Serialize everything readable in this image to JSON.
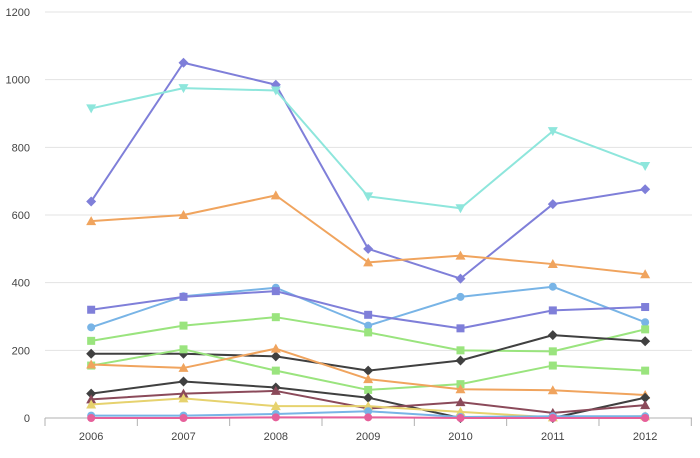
{
  "chart_data": {
    "type": "line",
    "title": "",
    "xlabel": "",
    "ylabel": "",
    "categories": [
      "2006",
      "2007",
      "2008",
      "2009",
      "2010",
      "2011",
      "2012"
    ],
    "ylim": [
      0,
      1200
    ],
    "yticks": [
      0,
      200,
      400,
      600,
      800,
      1000,
      1200
    ],
    "grid": "horizontal",
    "legend": "none",
    "series": [
      {
        "color": "#7f7fd9",
        "marker": "diamond",
        "values": [
          640,
          1050,
          985,
          500,
          412,
          632,
          676
        ]
      },
      {
        "color": "#8ee6dc",
        "marker": "triangle-down",
        "values": [
          915,
          975,
          968,
          655,
          620,
          848,
          745
        ]
      },
      {
        "color": "#f0a45e",
        "marker": "triangle",
        "values": [
          582,
          600,
          658,
          460,
          480,
          455,
          425
        ]
      },
      {
        "color": "#78b4e6",
        "marker": "circle",
        "values": [
          268,
          360,
          385,
          273,
          358,
          388,
          283
        ]
      },
      {
        "color": "#7f7fd9",
        "marker": "square",
        "values": [
          320,
          358,
          375,
          305,
          265,
          318,
          328
        ]
      },
      {
        "color": "#9ae47e",
        "marker": "square",
        "values": [
          228,
          273,
          298,
          253,
          200,
          197,
          262
        ]
      },
      {
        "color": "#404040",
        "marker": "diamond",
        "values": [
          190,
          190,
          182,
          140,
          170,
          245,
          227
        ]
      },
      {
        "color": "#9ae47e",
        "marker": "square",
        "values": [
          155,
          203,
          140,
          83,
          100,
          155,
          140
        ]
      },
      {
        "color": "#f0a45e",
        "marker": "triangle",
        "values": [
          158,
          148,
          205,
          115,
          85,
          82,
          68
        ]
      },
      {
        "color": "#404040",
        "marker": "diamond",
        "values": [
          72,
          108,
          90,
          60,
          0,
          0,
          60
        ]
      },
      {
        "color": "#8b4a5a",
        "marker": "triangle",
        "values": [
          55,
          72,
          80,
          28,
          47,
          15,
          38
        ]
      },
      {
        "color": "#e6d26e",
        "marker": "triangle",
        "values": [
          40,
          58,
          35,
          35,
          18,
          2,
          5
        ]
      },
      {
        "color": "#78b4e6",
        "marker": "circle",
        "values": [
          7,
          7,
          12,
          20,
          3,
          5,
          5
        ]
      },
      {
        "color": "#e6609a",
        "marker": "circle",
        "values": [
          0,
          0,
          2,
          2,
          0,
          0,
          0
        ]
      }
    ]
  }
}
